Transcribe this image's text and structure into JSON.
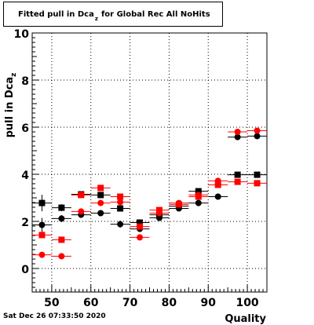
{
  "title": {
    "text": "Fitted pull in Dca",
    "subscript": "z",
    "suffix": "for Global Rec All NoHits"
  },
  "timestamp": "Sat Dec 26 07:33:50 2020",
  "chart_data": {
    "type": "scatter",
    "xlabel": "Quality",
    "ylabel": "pull in Dca",
    "ylabel_subscript": "z",
    "xlim": [
      45,
      105
    ],
    "ylim": [
      -1,
      10
    ],
    "xticks": [
      50,
      60,
      70,
      80,
      90,
      100
    ],
    "yticks": [
      0,
      2,
      4,
      6,
      8,
      10
    ],
    "grid": true,
    "x_error": 2.5,
    "series": [
      {
        "marker": "square",
        "color": "#000000",
        "points": [
          {
            "x": 47.5,
            "y": 2.78,
            "yerr": 0.35
          },
          {
            "x": 52.5,
            "y": 2.58,
            "yerr": 0.15
          },
          {
            "x": 57.5,
            "y": 3.15,
            "yerr": 0.08
          },
          {
            "x": 62.5,
            "y": 3.12,
            "yerr": 0.08
          },
          {
            "x": 67.5,
            "y": 2.55,
            "yerr": 0.08
          },
          {
            "x": 72.5,
            "y": 1.95,
            "yerr": 0.08
          },
          {
            "x": 77.5,
            "y": 2.28,
            "yerr": 0.05
          },
          {
            "x": 82.5,
            "y": 2.65,
            "yerr": 0.05
          },
          {
            "x": 87.5,
            "y": 3.28,
            "yerr": 0.05
          },
          {
            "x": 97.5,
            "y": 3.98,
            "yerr": 0.05
          },
          {
            "x": 102.5,
            "y": 3.98,
            "yerr": 0.05
          }
        ]
      },
      {
        "marker": "circle",
        "color": "#000000",
        "points": [
          {
            "x": 47.5,
            "y": 1.85,
            "yerr": 0.3
          },
          {
            "x": 52.5,
            "y": 2.12,
            "yerr": 0.15
          },
          {
            "x": 57.5,
            "y": 2.28,
            "yerr": 0.08
          },
          {
            "x": 62.5,
            "y": 2.35,
            "yerr": 0.08
          },
          {
            "x": 67.5,
            "y": 1.88,
            "yerr": 0.15
          },
          {
            "x": 72.5,
            "y": 1.68,
            "yerr": 0.08
          },
          {
            "x": 77.5,
            "y": 2.15,
            "yerr": 0.05
          },
          {
            "x": 82.5,
            "y": 2.55,
            "yerr": 0.05
          },
          {
            "x": 87.5,
            "y": 2.78,
            "yerr": 0.05
          },
          {
            "x": 92.5,
            "y": 3.05,
            "yerr": 0.05
          },
          {
            "x": 97.5,
            "y": 5.58,
            "yerr": 0.05
          },
          {
            "x": 102.5,
            "y": 5.62,
            "yerr": 0.05
          }
        ]
      },
      {
        "marker": "square",
        "color": "#ff0000",
        "points": [
          {
            "x": 47.5,
            "y": 1.42,
            "yerr": 0.05
          },
          {
            "x": 52.5,
            "y": 1.22,
            "yerr": 0.05
          },
          {
            "x": 57.5,
            "y": 3.12,
            "yerr": 0.05
          },
          {
            "x": 62.5,
            "y": 3.42,
            "yerr": 0.05
          },
          {
            "x": 67.5,
            "y": 3.05,
            "yerr": 0.05
          },
          {
            "x": 72.5,
            "y": 1.78,
            "yerr": 0.05
          },
          {
            "x": 77.5,
            "y": 2.48,
            "yerr": 0.05
          },
          {
            "x": 82.5,
            "y": 2.72,
            "yerr": 0.05
          },
          {
            "x": 87.5,
            "y": 3.05,
            "yerr": 0.05
          },
          {
            "x": 92.5,
            "y": 3.55,
            "yerr": 0.05
          },
          {
            "x": 97.5,
            "y": 3.68,
            "yerr": 0.05
          },
          {
            "x": 102.5,
            "y": 3.62,
            "yerr": 0.05
          }
        ]
      },
      {
        "marker": "circle",
        "color": "#ff0000",
        "points": [
          {
            "x": 47.5,
            "y": 0.58,
            "yerr": 0.05
          },
          {
            "x": 52.5,
            "y": 0.52,
            "yerr": 0.05
          },
          {
            "x": 57.5,
            "y": 2.42,
            "yerr": 0.05
          },
          {
            "x": 62.5,
            "y": 2.78,
            "yerr": 0.05
          },
          {
            "x": 67.5,
            "y": 2.82,
            "yerr": 0.05
          },
          {
            "x": 72.5,
            "y": 1.32,
            "yerr": 0.05
          },
          {
            "x": 77.5,
            "y": 2.35,
            "yerr": 0.05
          },
          {
            "x": 82.5,
            "y": 2.78,
            "yerr": 0.05
          },
          {
            "x": 87.5,
            "y": 3.12,
            "yerr": 0.05
          },
          {
            "x": 92.5,
            "y": 3.72,
            "yerr": 0.05
          },
          {
            "x": 97.5,
            "y": 5.8,
            "yerr": 0.05
          },
          {
            "x": 102.5,
            "y": 5.85,
            "yerr": 0.05
          }
        ]
      }
    ]
  }
}
